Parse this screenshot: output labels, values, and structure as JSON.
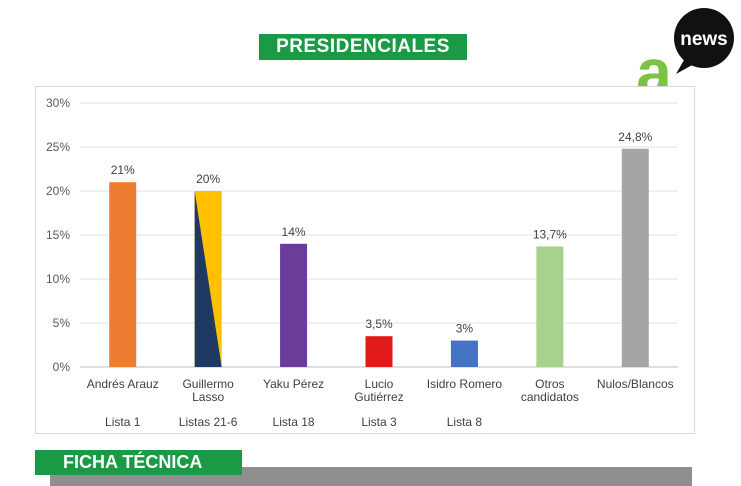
{
  "header": {
    "title": "PRESIDENCIALES",
    "logo_text": "news",
    "logo_letter": "a"
  },
  "section": {
    "ficha_title": "FICHA TÉCNICA"
  },
  "colors": {
    "banner_green": "#1b9a45",
    "logo_green": "#7dc242",
    "gray_band": "#8f8f8f"
  },
  "chart_data": {
    "type": "bar",
    "title": "",
    "xlabel": "",
    "ylabel": "",
    "ylim": [
      0,
      30
    ],
    "yticks": [
      "0%",
      "5%",
      "10%",
      "15%",
      "20%",
      "25%",
      "30%"
    ],
    "ytick_values": [
      0,
      5,
      10,
      15,
      20,
      25,
      30
    ],
    "grid": true,
    "legend": "none",
    "categories": [
      {
        "name": "Andrés Arauz",
        "list": "Lista 1",
        "value": 21,
        "label": "21%",
        "color": "#ed7d31"
      },
      {
        "name": "Guillermo Lasso",
        "list": "Listas 21-6",
        "value": 20,
        "label": "20%",
        "color": "#ffc000",
        "color2": "#1f3864"
      },
      {
        "name": "Yaku Pérez",
        "list": "Lista 18",
        "value": 14,
        "label": "14%",
        "color": "#6a3d9a"
      },
      {
        "name": "Lucio Gutiérrez",
        "list": "Lista 3",
        "value": 3.5,
        "label": "3,5%",
        "color": "#e31a1c"
      },
      {
        "name": "Isidro Romero",
        "list": "Lista 8",
        "value": 3,
        "label": "3%",
        "color": "#4472c4"
      },
      {
        "name": "Otros candidatos",
        "list": "",
        "value": 13.7,
        "label": "13,7%",
        "color": "#a9d18e"
      },
      {
        "name": "Nulos/Blancos",
        "list": "",
        "value": 24.8,
        "label": "24,8%",
        "color": "#a5a5a5"
      }
    ]
  }
}
